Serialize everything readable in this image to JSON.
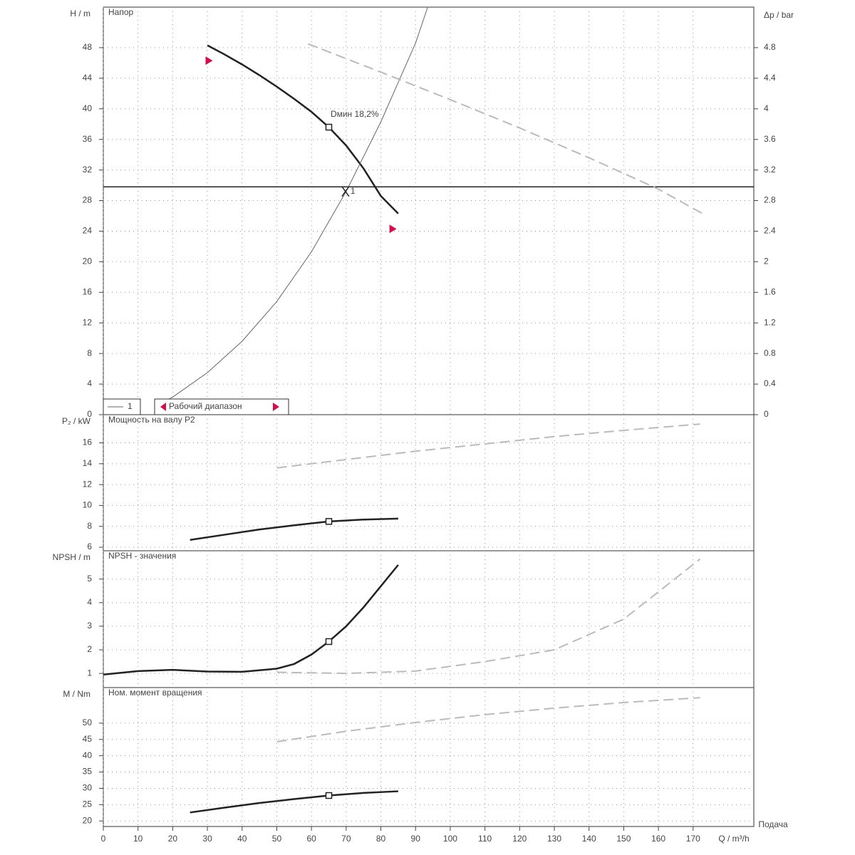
{
  "chart_data": [
    {
      "type": "line",
      "title": "Напор",
      "ylabel": "H / m",
      "y2label": "Δp / bar",
      "xlim": [
        0,
        187.5
      ],
      "ylim": [
        0,
        53.3
      ],
      "y2lim": [
        0,
        5.33
      ],
      "xticks": [
        0,
        10,
        20,
        30,
        40,
        50,
        60,
        70,
        80,
        90,
        100,
        110,
        120,
        130,
        140,
        150,
        160,
        170
      ],
      "yticks": [
        0,
        4,
        8,
        12,
        16,
        20,
        24,
        28,
        32,
        36,
        40,
        44,
        48
      ],
      "y2ticks": [
        0,
        0.4,
        0.8,
        1.2,
        1.6,
        2,
        2.4,
        2.8,
        3.2,
        3.6,
        4,
        4.4,
        4.8
      ],
      "series": [
        {
          "color": "#222",
          "style": "thick",
          "x": [
            30,
            35,
            40,
            45,
            50,
            55,
            60,
            65,
            70,
            75,
            80,
            85
          ],
          "values": [
            48.3,
            47.1,
            45.8,
            44.4,
            42.9,
            41.3,
            39.6,
            37.6,
            35.2,
            32.2,
            28.6,
            26.3
          ]
        },
        {
          "color": "#666",
          "style": "thin",
          "x": [
            17,
            20,
            30,
            40,
            50,
            60,
            70,
            80,
            90,
            93.5
          ],
          "values": [
            1.6,
            2.3,
            5.5,
            9.6,
            14.8,
            21.3,
            29.2,
            38.3,
            48.6,
            53.3
          ]
        },
        {
          "color": "#bbb",
          "style": "dashed",
          "x": [
            59,
            80,
            100,
            120,
            140,
            160,
            173.5
          ],
          "values": [
            48.5,
            44.8,
            41.2,
            37.5,
            33.6,
            29.5,
            26.1
          ]
        }
      ],
      "hline": 29.8,
      "markers": [
        {
          "x": 65,
          "y": 37.6
        }
      ],
      "duty_point": {
        "x": 69.8,
        "y": 29.2,
        "label": "1"
      },
      "range_markers": [
        {
          "x": 30.5,
          "y": 46.3
        },
        {
          "x": 83.5,
          "y": 24.3
        }
      ],
      "annotations": [
        {
          "text": "Dмин   18,2%",
          "x": 65.5,
          "y": 38.5
        }
      ],
      "legend": [
        "1",
        "Рабочий диапазон"
      ]
    },
    {
      "type": "line",
      "title": "Мощность на валу P2",
      "ylabel": "P₂ / kW",
      "xlim": [
        0,
        187.5
      ],
      "ylim": [
        5.66,
        18.7
      ],
      "xticks": [
        0,
        10,
        20,
        30,
        40,
        50,
        60,
        70,
        80,
        90,
        100,
        110,
        120,
        130,
        140,
        150,
        160,
        170
      ],
      "yticks": [
        6,
        8,
        10,
        12,
        14,
        16
      ],
      "series": [
        {
          "color": "#222",
          "style": "thick",
          "x": [
            25,
            35,
            45,
            55,
            65,
            75,
            85
          ],
          "values": [
            6.7,
            7.2,
            7.7,
            8.1,
            8.47,
            8.65,
            8.74
          ]
        },
        {
          "color": "#bbb",
          "style": "dashed",
          "x": [
            50,
            70,
            90,
            110,
            130,
            150,
            172
          ],
          "values": [
            13.6,
            14.4,
            15.2,
            15.9,
            16.6,
            17.2,
            17.8
          ]
        }
      ],
      "markers": [
        {
          "x": 65,
          "y": 8.47
        }
      ]
    },
    {
      "type": "line",
      "title": "NPSH - значения",
      "ylabel": "NPSH / m",
      "xlim": [
        0,
        187.5
      ],
      "ylim": [
        0.4,
        6.2
      ],
      "xticks": [
        0,
        10,
        20,
        30,
        40,
        50,
        60,
        70,
        80,
        90,
        100,
        110,
        120,
        130,
        140,
        150,
        160,
        170
      ],
      "yticks": [
        1,
        2,
        3,
        4,
        5
      ],
      "series": [
        {
          "color": "#222",
          "style": "thick",
          "x": [
            0,
            10,
            20,
            30,
            40,
            50,
            55,
            60,
            65,
            70,
            75,
            80,
            85
          ],
          "values": [
            0.95,
            1.1,
            1.15,
            1.08,
            1.07,
            1.2,
            1.4,
            1.8,
            2.35,
            3,
            3.8,
            4.7,
            5.6
          ]
        },
        {
          "color": "#bbb",
          "style": "dashed",
          "x": [
            50,
            70,
            90,
            110,
            130,
            150,
            172
          ],
          "values": [
            1.05,
            1.0,
            1.1,
            1.5,
            2.0,
            3.3,
            5.85
          ]
        }
      ],
      "markers": [
        {
          "x": 65,
          "y": 2.35
        }
      ]
    },
    {
      "type": "line",
      "title": "Ном. момент вращения",
      "ylabel": "M / Nm",
      "xlabel": "Q / m³/h",
      "xtitle": "Подача",
      "xlim": [
        0,
        187.5
      ],
      "ylim": [
        18.3,
        60.9
      ],
      "xticks": [
        0,
        10,
        20,
        30,
        40,
        50,
        60,
        70,
        80,
        90,
        100,
        110,
        120,
        130,
        140,
        150,
        160,
        170
      ],
      "yticks": [
        20,
        25,
        30,
        35,
        40,
        45,
        50
      ],
      "series": [
        {
          "color": "#222",
          "style": "thick",
          "x": [
            25,
            35,
            45,
            55,
            65,
            75,
            85
          ],
          "values": [
            22.6,
            24.1,
            25.5,
            26.7,
            27.8,
            28.6,
            29.1
          ]
        },
        {
          "color": "#bbb",
          "style": "dashed",
          "x": [
            50,
            70,
            90,
            110,
            130,
            150,
            172
          ],
          "values": [
            44.3,
            47.5,
            50.2,
            52.6,
            54.6,
            56.3,
            57.8
          ]
        }
      ],
      "markers": [
        {
          "x": 65,
          "y": 27.8
        }
      ]
    }
  ]
}
